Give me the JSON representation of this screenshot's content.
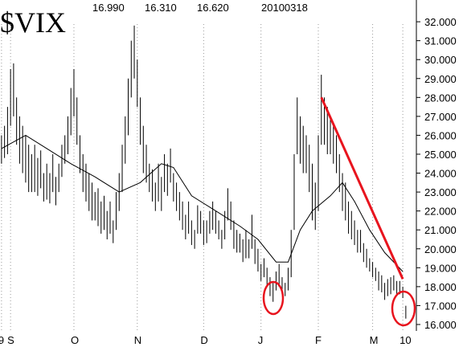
{
  "chart_data": {
    "type": "ohlc",
    "title": "$VIX",
    "header_values": [
      "16.990",
      "16.310",
      "16.620",
      "20100318"
    ],
    "color": "#000000",
    "high": [
      26,
      26.5,
      27.5,
      29.5,
      29.8,
      28,
      27,
      26.5,
      26,
      25.5,
      25,
      25.5,
      24.8,
      25.2,
      24,
      24.5,
      24,
      25,
      23.8,
      24.5,
      25.5,
      26,
      27,
      28.5,
      29.5,
      28,
      26,
      25,
      24.5,
      24,
      23.5,
      23,
      23.2,
      22.5,
      22.8,
      22,
      22.5,
      21.5,
      23,
      24,
      25.5,
      27,
      29,
      31,
      31.8,
      30,
      28,
      26.5,
      25.5,
      24.5,
      24.2,
      23.5,
      24.5,
      23.8,
      25,
      24.5,
      25.3,
      24,
      23.5,
      23,
      22.5,
      21.8,
      22.5,
      21.5,
      21,
      22.3,
      22,
      21.5,
      21.5,
      22,
      22.5,
      22,
      21.5,
      21,
      22,
      23.2,
      22.5,
      21.5,
      21,
      20.8,
      20.5,
      21,
      20.5,
      21.8,
      20.5,
      20,
      19.2,
      19.5,
      19,
      18.5,
      18.2,
      18.8,
      19.2,
      18.5,
      18.2,
      19,
      21,
      25,
      28,
      27,
      26.5,
      26,
      25.5,
      24.5,
      23.5,
      26,
      29.2,
      28,
      27.5,
      27,
      26.5,
      26,
      25,
      24,
      23.5,
      22.5,
      22,
      21.5,
      21,
      21,
      20.3,
      20,
      19.5,
      19.3,
      19,
      18.8,
      18.6,
      18.2,
      18.4,
      18.5,
      18.6,
      18.3,
      18.3,
      18,
      16.99
    ],
    "low": [
      24.5,
      24.8,
      25,
      26.5,
      27,
      25.5,
      24.5,
      24,
      23.5,
      23,
      23,
      23,
      22.8,
      23.2,
      22.5,
      22.6,
      22.4,
      23,
      22.3,
      23,
      23.8,
      24.5,
      25,
      26,
      27,
      25.5,
      24,
      23,
      22.5,
      22,
      21.5,
      21.5,
      21.2,
      20.8,
      21,
      20.5,
      20.8,
      20.3,
      21,
      22,
      23,
      24.5,
      26,
      28,
      29,
      27.5,
      25.5,
      24,
      23.5,
      23,
      22.5,
      22,
      22.5,
      22,
      23,
      22.8,
      23.5,
      22.5,
      22,
      21.5,
      21,
      20.5,
      20.8,
      20.2,
      20,
      20.8,
      20.8,
      20.2,
      20.3,
      20.8,
      21,
      20.8,
      20.5,
      20,
      20.5,
      21.5,
      21,
      20,
      19.8,
      19.8,
      19.3,
      19.5,
      19.5,
      20,
      19.2,
      18.8,
      18.3,
      18.5,
      18,
      17.5,
      17.2,
      17.8,
      18,
      17.6,
      17.5,
      17.8,
      18.5,
      21,
      25,
      24.5,
      24,
      24,
      23,
      21.5,
      21,
      22,
      25.5,
      25.5,
      25,
      25,
      24.5,
      24,
      23,
      22,
      21.5,
      20.8,
      20.5,
      20.2,
      19.8,
      19.8,
      19.3,
      19,
      18.8,
      18.5,
      18.3,
      17.8,
      17.7,
      17.3,
      17.5,
      17.6,
      17.8,
      17.5,
      17.6,
      17.4,
      16.31
    ],
    "moving_average": {
      "x": [
        0,
        8,
        15,
        23,
        31,
        39,
        46,
        53,
        57,
        63,
        71,
        79,
        85,
        91,
        95,
        99,
        103,
        109,
        113,
        117,
        122,
        127,
        133
      ],
      "values": [
        25.3,
        26,
        25.3,
        24.5,
        23.8,
        23,
        23.5,
        24.5,
        24.3,
        22.8,
        22,
        21.2,
        20.5,
        19.3,
        19.3,
        21,
        22,
        22.8,
        23.5,
        22.5,
        21,
        19.8,
        18.8
      ]
    },
    "trendline": {
      "x": [
        106,
        133
      ],
      "values": [
        28,
        18.4
      ],
      "color": "#e8141e"
    },
    "xlim": [
      -0.5,
      137.5
    ],
    "xticks": [
      {
        "value": 0,
        "label": "9"
      },
      {
        "value": 3,
        "label": "S"
      },
      {
        "value": 24,
        "label": "O"
      },
      {
        "value": 45,
        "label": "N"
      },
      {
        "value": 67,
        "label": "D"
      },
      {
        "value": 86,
        "label": "J"
      },
      {
        "value": 105,
        "label": "F"
      },
      {
        "value": 123,
        "label": "M"
      },
      {
        "value": 133,
        "label": "10"
      }
    ],
    "ylim": [
      15.32,
      33.15
    ],
    "yticks": [
      {
        "value": 16,
        "label": "16.000"
      },
      {
        "value": 17,
        "label": "17.000"
      },
      {
        "value": 18,
        "label": "18.000"
      },
      {
        "value": 19,
        "label": "19.000"
      },
      {
        "value": 20,
        "label": "20.000"
      },
      {
        "value": 21,
        "label": "21.000"
      },
      {
        "value": 22,
        "label": "22.000"
      },
      {
        "value": 23,
        "label": "23.000"
      },
      {
        "value": 24,
        "label": "24.000"
      },
      {
        "value": 25,
        "label": "25.000"
      },
      {
        "value": 26,
        "label": "26.000"
      },
      {
        "value": 27,
        "label": "27.000"
      },
      {
        "value": 28,
        "label": "28.000"
      },
      {
        "value": 29,
        "label": "29.000"
      },
      {
        "value": 30,
        "label": "30.000"
      },
      {
        "value": 31,
        "label": "31.000"
      },
      {
        "value": 32,
        "label": "32.000"
      }
    ],
    "grid": true
  }
}
